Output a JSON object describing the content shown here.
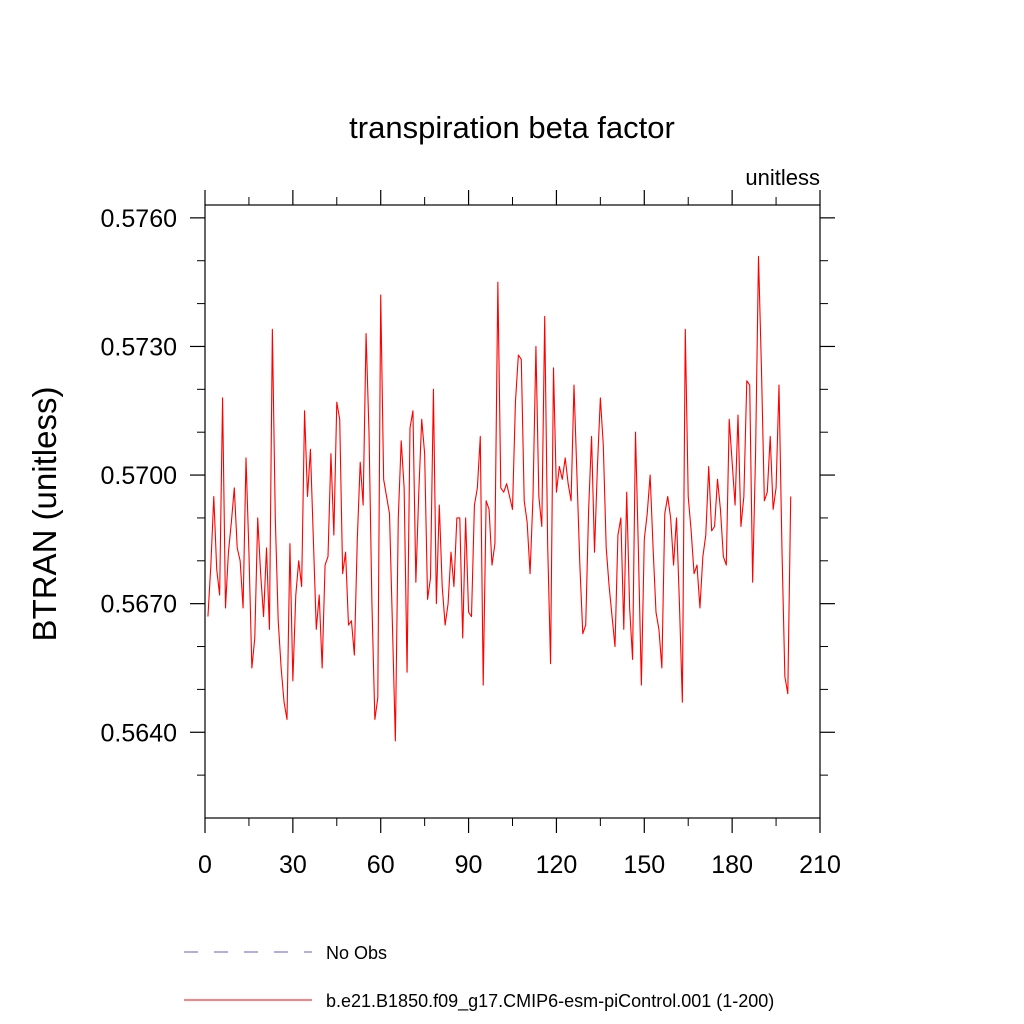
{
  "chart_data": {
    "type": "line",
    "title": "transpiration beta factor",
    "units_label": "unitless",
    "ylabel": "BTRAN  (unitless)",
    "xlabel": "",
    "xlim": [
      0,
      210
    ],
    "ylim": [
      0.562,
      0.5763
    ],
    "x_ticks": [
      0,
      30,
      60,
      90,
      120,
      150,
      180,
      210
    ],
    "x_tick_labels": [
      "0",
      "30",
      "60",
      "90",
      "120",
      "150",
      "180",
      "210"
    ],
    "y_ticks": [
      0.564,
      0.567,
      0.57,
      0.573,
      0.576
    ],
    "y_tick_labels": [
      "0.5640",
      "0.5670",
      "0.5700",
      "0.5730",
      "0.5760"
    ],
    "y_minor_step": 0.001,
    "x_minor_step": 15,
    "grid": false,
    "legend_position": "bottom",
    "series": [
      {
        "name": "No Obs",
        "color": "#6a5acd",
        "dash": "dashed",
        "x": [],
        "y": []
      },
      {
        "name": "b.e21.B1850.f09_g17.CMIP6-esm-piControl.001 (1-200)",
        "color": "#ff0000",
        "dash": "solid",
        "x_start": 1,
        "x_step": 1,
        "y": [
          0.5667,
          0.5679,
          0.5695,
          0.5678,
          0.5672,
          0.5718,
          0.5669,
          0.5682,
          0.5689,
          0.5697,
          0.5683,
          0.568,
          0.5669,
          0.5704,
          0.5682,
          0.5655,
          0.5662,
          0.569,
          0.5677,
          0.5667,
          0.5683,
          0.5664,
          0.5734,
          0.569,
          0.5666,
          0.5655,
          0.5647,
          0.5643,
          0.5684,
          0.5652,
          0.5672,
          0.568,
          0.5674,
          0.5715,
          0.5695,
          0.5706,
          0.5685,
          0.5664,
          0.5672,
          0.5655,
          0.5679,
          0.5681,
          0.5705,
          0.5686,
          0.5717,
          0.5713,
          0.5677,
          0.5682,
          0.5665,
          0.5666,
          0.5658,
          0.5685,
          0.5703,
          0.5693,
          0.5733,
          0.571,
          0.567,
          0.5643,
          0.5648,
          0.5742,
          0.5699,
          0.5695,
          0.5691,
          0.5665,
          0.5638,
          0.569,
          0.5708,
          0.5697,
          0.5654,
          0.5711,
          0.5715,
          0.5675,
          0.5696,
          0.5713,
          0.5705,
          0.5671,
          0.5676,
          0.572,
          0.567,
          0.5693,
          0.5674,
          0.5665,
          0.567,
          0.5682,
          0.5674,
          0.569,
          0.569,
          0.5662,
          0.569,
          0.5668,
          0.5667,
          0.5693,
          0.5697,
          0.5709,
          0.5651,
          0.5694,
          0.5692,
          0.5679,
          0.5684,
          0.5745,
          0.5697,
          0.5696,
          0.5698,
          0.5695,
          0.5692,
          0.5717,
          0.5728,
          0.5727,
          0.5694,
          0.5689,
          0.5677,
          0.5695,
          0.573,
          0.5695,
          0.5688,
          0.5737,
          0.5684,
          0.5656,
          0.5725,
          0.5696,
          0.5702,
          0.5699,
          0.5704,
          0.5698,
          0.5694,
          0.5721,
          0.57,
          0.5679,
          0.5663,
          0.5665,
          0.5692,
          0.5709,
          0.5682,
          0.5702,
          0.5718,
          0.5707,
          0.5683,
          0.5674,
          0.5667,
          0.566,
          0.5686,
          0.569,
          0.5664,
          0.5696,
          0.5669,
          0.5657,
          0.571,
          0.5682,
          0.5651,
          0.5685,
          0.5691,
          0.57,
          0.5683,
          0.5668,
          0.5664,
          0.5655,
          0.5691,
          0.5695,
          0.569,
          0.5679,
          0.569,
          0.567,
          0.5647,
          0.5734,
          0.5695,
          0.5687,
          0.5677,
          0.5679,
          0.5669,
          0.5681,
          0.5686,
          0.5702,
          0.5687,
          0.5688,
          0.5699,
          0.5692,
          0.5681,
          0.5679,
          0.5713,
          0.5703,
          0.5693,
          0.5714,
          0.5688,
          0.5695,
          0.5722,
          0.5721,
          0.5675,
          0.5705,
          0.5751,
          0.5725,
          0.5694,
          0.5696,
          0.5709,
          0.5692,
          0.5697,
          0.5721,
          0.5683,
          0.5653,
          0.5649,
          0.5695
        ]
      }
    ]
  }
}
